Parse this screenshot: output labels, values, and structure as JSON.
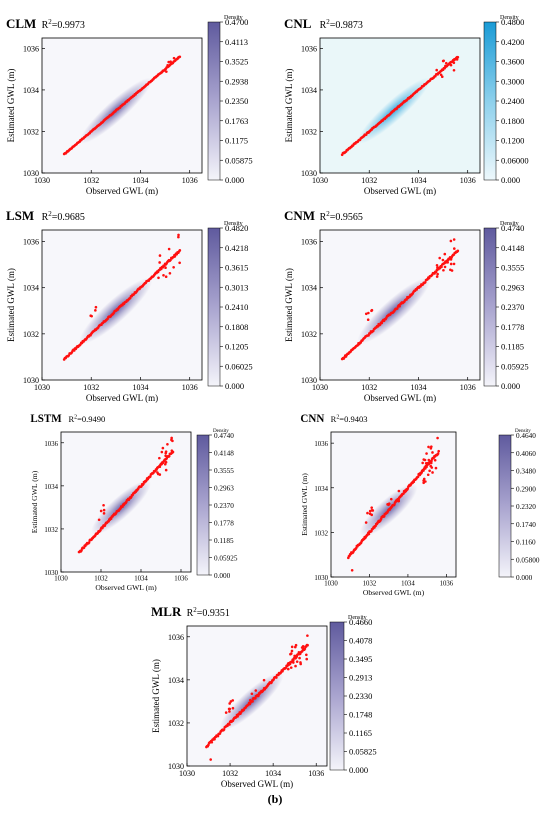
{
  "figure_label": "(b)",
  "colorbar_title": "Density",
  "panels": [
    {
      "model": "CLM",
      "r2_prefix": "R",
      "r2_sup": "2",
      "r2_value": "=0.9973",
      "theme": "purple",
      "cb_max": 0.47,
      "cb_ticks": [
        "0.4700",
        "0.4113",
        "0.3525",
        "0.2938",
        "0.2350",
        "0.1763",
        "0.1175",
        "0.05875",
        "0.000"
      ],
      "scatter": "tight"
    },
    {
      "model": "CNL",
      "r2_prefix": "R",
      "r2_sup": "2",
      "r2_value": "=0.9873",
      "theme": "blue",
      "cb_max": 0.48,
      "cb_ticks": [
        "0.4800",
        "0.4200",
        "0.3600",
        "0.3000",
        "0.2400",
        "0.1800",
        "0.1200",
        "0.06000",
        "0.000"
      ],
      "scatter": "tight2"
    },
    {
      "model": "LSM",
      "r2_prefix": "R",
      "r2_sup": "2",
      "r2_value": "=0.9685",
      "theme": "purple",
      "cb_max": 0.482,
      "cb_ticks": [
        "0.4820",
        "0.4218",
        "0.3615",
        "0.3013",
        "0.2410",
        "0.1808",
        "0.1205",
        "0.06025",
        "0.000"
      ],
      "scatter": "medium"
    },
    {
      "model": "CNM",
      "r2_prefix": "R",
      "r2_sup": "2",
      "r2_value": "=0.9565",
      "theme": "purple",
      "cb_max": 0.474,
      "cb_ticks": [
        "0.4740",
        "0.4148",
        "0.3555",
        "0.2963",
        "0.2370",
        "0.1778",
        "0.1185",
        "0.05925",
        "0.000"
      ],
      "scatter": "wide"
    },
    {
      "model": "LSTM",
      "r2_prefix": "R",
      "r2_sup": "2",
      "r2_value": "=0.9490",
      "theme": "purple",
      "cb_max": 0.474,
      "cb_ticks": [
        "0.4740",
        "0.4148",
        "0.3555",
        "0.2963",
        "0.2370",
        "0.1778",
        "0.1185",
        "0.05925",
        "0.000"
      ],
      "scatter": "wide"
    },
    {
      "model": "CNN",
      "r2_prefix": "R",
      "r2_sup": "2",
      "r2_value": "=0.9403",
      "theme": "purple",
      "cb_max": 0.464,
      "cb_ticks": [
        "0.4640",
        "0.4060",
        "0.3480",
        "0.2900",
        "0.2320",
        "0.1740",
        "0.1160",
        "0.05800",
        "0.000"
      ],
      "scatter": "wider"
    },
    {
      "model": "MLR",
      "r2_prefix": "R",
      "r2_sup": "2",
      "r2_value": "=0.9351",
      "theme": "purple",
      "cb_max": 0.466,
      "cb_ticks": [
        "0.4660",
        "0.4078",
        "0.3495",
        "0.2913",
        "0.2330",
        "0.1748",
        "0.1165",
        "0.05825",
        "0.000"
      ],
      "scatter": "wider"
    }
  ],
  "chart_data": [
    {
      "type": "scatter",
      "title": "CLM",
      "xlabel": "Observed GWL (m)",
      "ylabel": "Estimated GWL (m)",
      "xlim": [
        1030,
        1036.5
      ],
      "ylim": [
        1030,
        1036.5
      ],
      "xticks": [
        "1030",
        "1032",
        "1034",
        "1036"
      ],
      "yticks": [
        "1030",
        "1032",
        "1034",
        "1036"
      ],
      "r2": 0.9973,
      "density_max": 0.47
    },
    {
      "type": "scatter",
      "title": "CNL",
      "xlabel": "Observed GWL (m)",
      "ylabel": "Estimated GWL (m)",
      "xlim": [
        1030,
        1036.5
      ],
      "ylim": [
        1030,
        1036.5
      ],
      "xticks": [
        "1030",
        "1032",
        "1034",
        "1036"
      ],
      "yticks": [
        "1030",
        "1032",
        "1034",
        "1036"
      ],
      "r2": 0.9873,
      "density_max": 0.48
    },
    {
      "type": "scatter",
      "title": "LSM",
      "xlabel": "Observed GWL (m)",
      "ylabel": "Estimated GWL (m)",
      "xlim": [
        1030,
        1036.5
      ],
      "ylim": [
        1030,
        1036.5
      ],
      "xticks": [
        "1030",
        "1032",
        "1034",
        "1036"
      ],
      "yticks": [
        "1030",
        "1032",
        "1034",
        "1036"
      ],
      "r2": 0.9685,
      "density_max": 0.482
    },
    {
      "type": "scatter",
      "title": "CNM",
      "xlabel": "Observed GWL (m)",
      "ylabel": "Estimated GWL (m)",
      "xlim": [
        1030,
        1036.5
      ],
      "ylim": [
        1030,
        1036.5
      ],
      "xticks": [
        "1030",
        "1032",
        "1034",
        "1036"
      ],
      "yticks": [
        "1030",
        "1032",
        "1034",
        "1036"
      ],
      "r2": 0.9565,
      "density_max": 0.474
    },
    {
      "type": "scatter",
      "title": "LSTM",
      "xlabel": "Observed GWL (m)",
      "ylabel": "Estimated GWL (m)",
      "xlim": [
        1030,
        1036.5
      ],
      "ylim": [
        1030,
        1036.5
      ],
      "xticks": [
        "1030",
        "1032",
        "1034",
        "1036"
      ],
      "yticks": [
        "1030",
        "1032",
        "1034",
        "1036"
      ],
      "r2": 0.949,
      "density_max": 0.474
    },
    {
      "type": "scatter",
      "title": "CNN",
      "xlabel": "Observed GWL (m)",
      "ylabel": "Estimated GWL (m)",
      "xlim": [
        1030,
        1036.5
      ],
      "ylim": [
        1030,
        1036.5
      ],
      "xticks": [
        "1030",
        "1032",
        "1034",
        "1036"
      ],
      "yticks": [
        "1030",
        "1032",
        "1034",
        "1036"
      ],
      "r2": 0.9403,
      "density_max": 0.464
    },
    {
      "type": "scatter",
      "title": "MLR",
      "xlabel": "Observed GWL (m)",
      "ylabel": "Estimated GWL (m)",
      "xlim": [
        1030,
        1036.5
      ],
      "ylim": [
        1030,
        1036.5
      ],
      "xticks": [
        "1030",
        "1032",
        "1034",
        "1036"
      ],
      "yticks": [
        "1030",
        "1032",
        "1034",
        "1036"
      ],
      "r2": 0.9351,
      "density_max": 0.466
    }
  ]
}
